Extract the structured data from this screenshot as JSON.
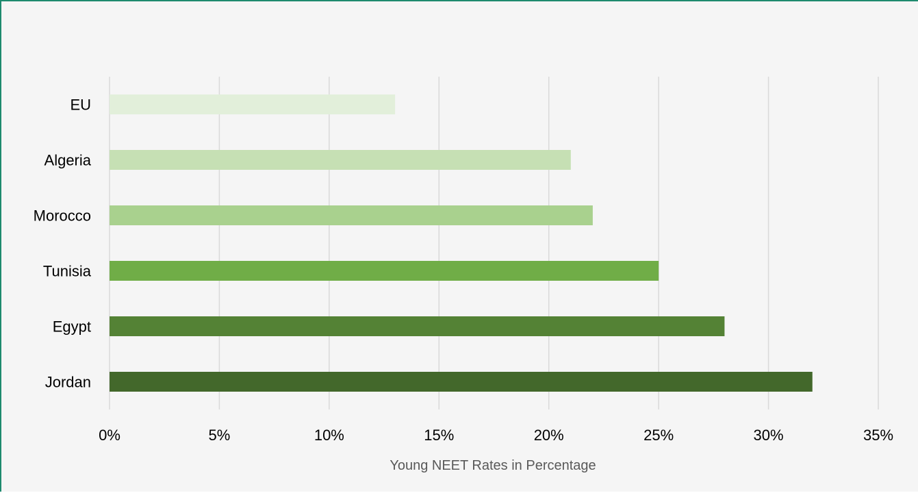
{
  "chart_data": {
    "type": "bar",
    "orientation": "horizontal",
    "categories": [
      "EU",
      "Algeria",
      "Morocco",
      "Tunisia",
      "Egypt",
      "Jordan"
    ],
    "values": [
      13,
      21,
      22,
      25,
      28,
      32
    ],
    "bar_colors": [
      "#e2efda",
      "#c6e0b4",
      "#a9d18e",
      "#70ad47",
      "#548235",
      "#43682b"
    ],
    "xlabel": "Young NEET Rates in Percentage",
    "ylabel": "",
    "title": "",
    "xlim": [
      0,
      35
    ],
    "x_ticks": [
      0,
      5,
      10,
      15,
      20,
      25,
      30,
      35
    ],
    "x_tick_labels": [
      "0%",
      "5%",
      "10%",
      "15%",
      "20%",
      "25%",
      "30%",
      "35%"
    ],
    "grid": "vertical",
    "legend": "none",
    "colors": {
      "background": "#f5f5f5",
      "frame_border": "#1e8a6e",
      "gridline": "#d9d9d9"
    }
  }
}
